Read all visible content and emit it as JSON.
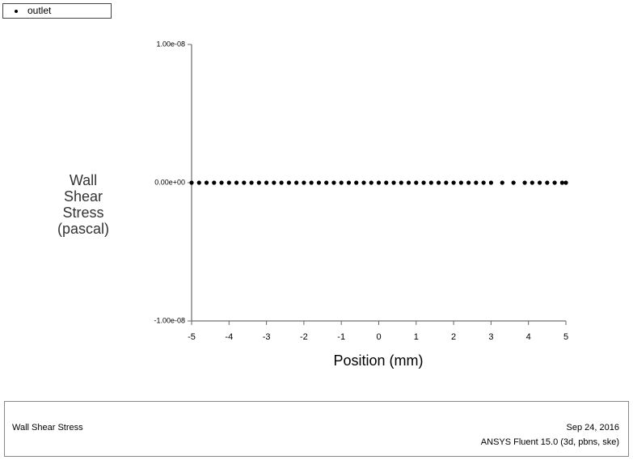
{
  "chart_data": {
    "type": "scatter",
    "xlabel": "Position (mm)",
    "ylabel": "Wall Shear Stress (pascal)",
    "x": [
      -5,
      -4.8,
      -4.6,
      -4.4,
      -4.2,
      -4,
      -3.8,
      -3.6,
      -3.4,
      -3.2,
      -3,
      -2.8,
      -2.6,
      -2.4,
      -2.2,
      -2,
      -1.8,
      -1.6,
      -1.4,
      -1.2,
      -1,
      -0.8,
      -0.6,
      -0.4,
      -0.2,
      0,
      0.2,
      0.4,
      0.6,
      0.8,
      1,
      1.2,
      1.4,
      1.6,
      1.8,
      2,
      2.2,
      2.4,
      2.6,
      2.8,
      3,
      3.3,
      3.6,
      3.9,
      4.1,
      4.3,
      4.5,
      4.7,
      4.9,
      5
    ],
    "series": [
      {
        "name": "outlet",
        "color": "#000000",
        "values": [
          0,
          0,
          0,
          0,
          0,
          0,
          0,
          0,
          0,
          0,
          0,
          0,
          0,
          0,
          0,
          0,
          0,
          0,
          0,
          0,
          0,
          0,
          0,
          0,
          0,
          0,
          0,
          0,
          0,
          0,
          0,
          0,
          0,
          0,
          0,
          0,
          0,
          0,
          0,
          0,
          0,
          0,
          0,
          0,
          0,
          0,
          0,
          0,
          0,
          0
        ]
      }
    ],
    "xlim": [
      -5,
      5
    ],
    "xticks": [
      -5,
      -4,
      -3,
      -2,
      -1,
      0,
      1,
      2,
      3,
      4,
      5
    ],
    "ylim": [
      -1e-08,
      1e-08
    ],
    "yticks": [
      {
        "value": 1e-08,
        "label": "1.00e-08"
      },
      {
        "value": 0,
        "label": "0.00e+00"
      },
      {
        "value": -1e-08,
        "label": "-1.00e-08"
      }
    ]
  },
  "footer": {
    "title": "Wall Shear Stress",
    "date": "Sep 24, 2016",
    "software": "ANSYS Fluent 15.0 (3d, pbns, ske)"
  }
}
